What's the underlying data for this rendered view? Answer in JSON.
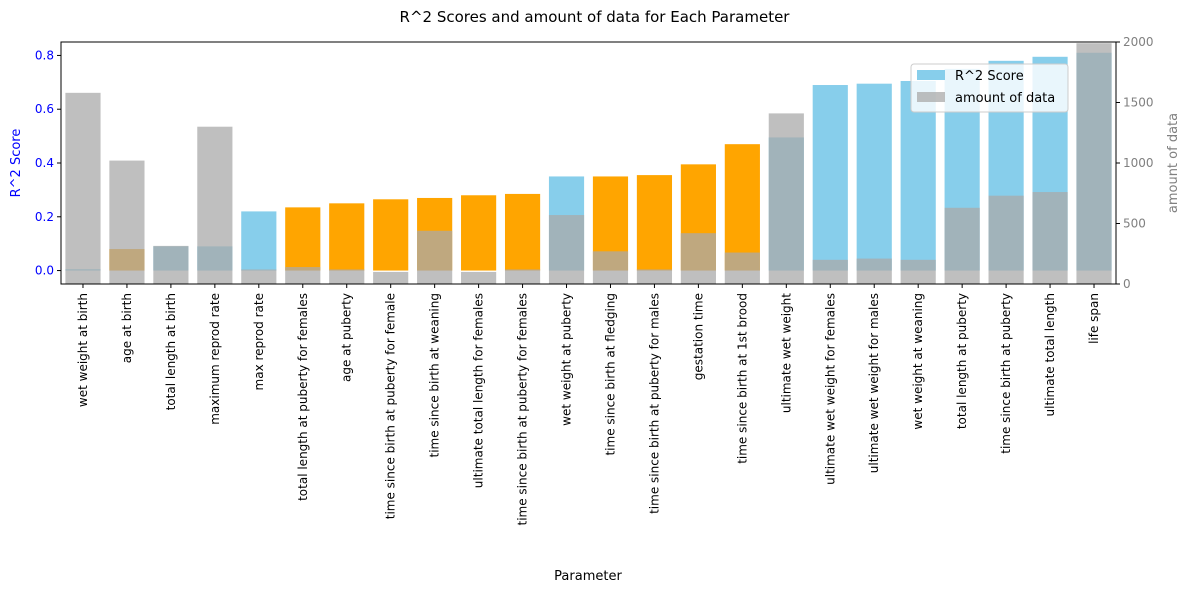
{
  "chart_data": {
    "type": "bar",
    "title": "R^2 Scores and amount of data for Each Parameter",
    "xlabel": "Parameter",
    "ylabel": "R^2 Score",
    "ylabel_right": "amount of data",
    "ylim": [
      -0.05,
      0.85
    ],
    "ylim_right": [
      0,
      2000
    ],
    "yticks": [
      "0.0",
      "0.2",
      "0.4",
      "0.6",
      "0.8"
    ],
    "yticks_right": [
      "0",
      "500",
      "1000",
      "1500",
      "2000"
    ],
    "grid": false,
    "legend_position": "top-right",
    "colors": {
      "r2_positive": "#87CEEB",
      "r2_negative": "#FFA500",
      "amount": "#A9A9A9",
      "left_axis": "#0000FF",
      "right_axis": "#808080"
    },
    "categories": [
      "wet weight at birth",
      "age at birth",
      "total length at birth",
      "maximum reprod rate",
      "max reprod rate",
      "total length at puberty for females",
      "age at puberty",
      "time since birth at puberty for female",
      "time since birth at weaning",
      "ultimate total length for females",
      "time since birth at puberty for females",
      "wet weight at puberty",
      "time since birth at fledging",
      "time since birth at puberty for males",
      "gestation time",
      "time since birth at 1st brood",
      "ultimate wet weight",
      "ultimate wet weight for females",
      "ultimate wet weight for males",
      "wet weight at weaning",
      "total length at puberty",
      "time since birth at puberty",
      "ultimate total length",
      "life span"
    ],
    "series": [
      {
        "name": "R^2 Score",
        "values": [
          0.005,
          0.08,
          0.09,
          0.09,
          0.22,
          0.235,
          0.25,
          0.265,
          0.27,
          0.28,
          0.285,
          0.35,
          0.35,
          0.355,
          0.395,
          0.47,
          0.495,
          0.69,
          0.695,
          0.705,
          0.75,
          0.78,
          0.795,
          0.81
        ],
        "negative": [
          false,
          true,
          false,
          false,
          false,
          true,
          true,
          true,
          true,
          true,
          true,
          false,
          true,
          true,
          true,
          true,
          false,
          false,
          false,
          false,
          false,
          false,
          false,
          false
        ]
      },
      {
        "name": "amount of data",
        "values": [
          1580,
          1020,
          315,
          1300,
          120,
          140,
          120,
          100,
          440,
          100,
          120,
          570,
          270,
          120,
          420,
          260,
          1410,
          200,
          210,
          200,
          630,
          730,
          760,
          1990
        ]
      }
    ]
  }
}
